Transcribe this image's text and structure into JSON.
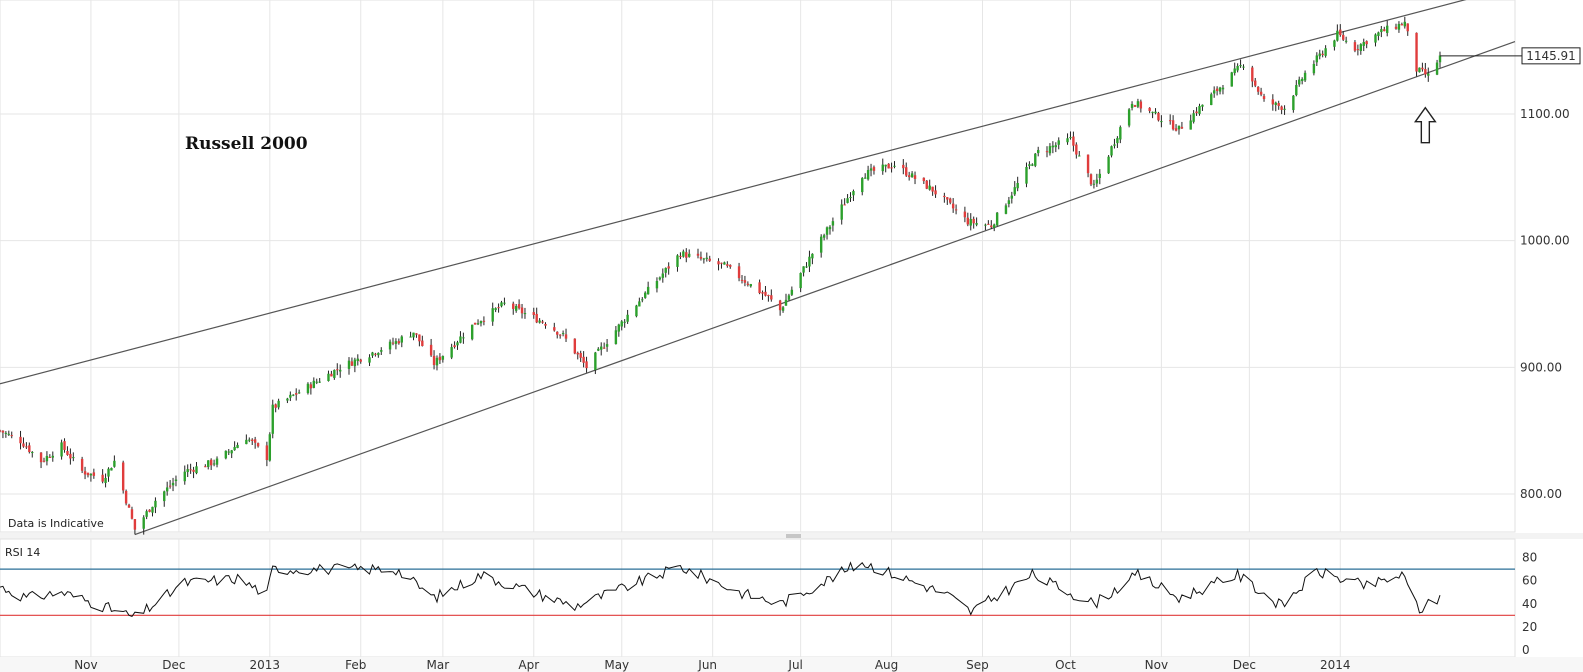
{
  "chart_data": [
    {
      "type": "candlestick",
      "title": "Russell 2000",
      "note": "Data is Indicative",
      "current_value": "1145.91",
      "ylim": [
        770,
        1190
      ],
      "y_ticks": [
        "800.00",
        "900.00",
        "1000.00",
        "1100.00"
      ],
      "x_labels": [
        "Nov",
        "Dec",
        "2013",
        "Feb",
        "Mar",
        "Apr",
        "May",
        "Jun",
        "Jul",
        "Aug",
        "Sep",
        "Oct",
        "Nov",
        "Dec",
        "2014"
      ],
      "colors": {
        "up": "#2ca02c",
        "down": "#e03c3c",
        "wick": "#222222",
        "trendline": "#555555"
      },
      "trend_channel": {
        "upper": {
          "start": [
            "2012-10-01",
            887
          ],
          "end": [
            "2014-02-04",
            1185
          ]
        },
        "lower": {
          "start": [
            "2012-11-16",
            768
          ],
          "end": [
            "2014-02-04",
            1136
          ]
        }
      },
      "close_anchors": [
        [
          "2012-10-01",
          850
        ],
        [
          "2012-10-08",
          842
        ],
        [
          "2012-10-15",
          826
        ],
        [
          "2012-10-22",
          838
        ],
        [
          "2012-10-29",
          818
        ],
        [
          "2012-11-05",
          812
        ],
        [
          "2012-11-09",
          826
        ],
        [
          "2012-11-16",
          772
        ],
        [
          "2012-11-23",
          795
        ],
        [
          "2012-12-03",
          818
        ],
        [
          "2012-12-14",
          826
        ],
        [
          "2012-12-24",
          845
        ],
        [
          "2012-12-31",
          829
        ],
        [
          "2013-01-02",
          868
        ],
        [
          "2013-01-25",
          900
        ],
        [
          "2013-02-13",
          920
        ],
        [
          "2013-02-19",
          928
        ],
        [
          "2013-02-26",
          903
        ],
        [
          "2013-03-12",
          935
        ],
        [
          "2013-03-22",
          950
        ],
        [
          "2013-04-05",
          935
        ],
        [
          "2013-04-11",
          925
        ],
        [
          "2013-04-19",
          900
        ],
        [
          "2013-05-06",
          950
        ],
        [
          "2013-05-21",
          990
        ],
        [
          "2013-06-05",
          980
        ],
        [
          "2013-06-20",
          955
        ],
        [
          "2013-06-24",
          945
        ],
        [
          "2013-07-05",
          990
        ],
        [
          "2013-07-22",
          1052
        ],
        [
          "2013-08-02",
          1060
        ],
        [
          "2013-08-15",
          1040
        ],
        [
          "2013-08-27",
          1015
        ],
        [
          "2013-09-04",
          1012
        ],
        [
          "2013-09-20",
          1070
        ],
        [
          "2013-10-01",
          1080
        ],
        [
          "2013-10-09",
          1042
        ],
        [
          "2013-10-22",
          1110
        ],
        [
          "2013-11-07",
          1088
        ],
        [
          "2013-11-14",
          1105
        ],
        [
          "2013-11-29",
          1140
        ],
        [
          "2013-12-06",
          1110
        ],
        [
          "2013-12-13",
          1105
        ],
        [
          "2013-12-20",
          1132
        ],
        [
          "2013-12-31",
          1163
        ],
        [
          "2014-01-06",
          1152
        ],
        [
          "2014-01-15",
          1165
        ],
        [
          "2014-01-23",
          1172
        ],
        [
          "2014-01-27",
          1135
        ],
        [
          "2014-01-31",
          1130
        ],
        [
          "2014-02-04",
          1145
        ]
      ]
    },
    {
      "type": "line",
      "title": "RSI 14",
      "ylim": [
        0,
        90
      ],
      "y_ticks": [
        "0",
        "20",
        "40",
        "60",
        "80"
      ],
      "reference_lines": [
        {
          "value": 70,
          "color": "#2a6f97"
        },
        {
          "value": 30,
          "color": "#e03c3c"
        }
      ],
      "anchors": [
        [
          "2012-10-01",
          55
        ],
        [
          "2012-10-10",
          45
        ],
        [
          "2012-10-22",
          50
        ],
        [
          "2012-11-05",
          38
        ],
        [
          "2012-11-16",
          28
        ],
        [
          "2012-12-03",
          58
        ],
        [
          "2012-12-21",
          62
        ],
        [
          "2012-12-31",
          48
        ],
        [
          "2013-01-02",
          70
        ],
        [
          "2013-02-13",
          70
        ],
        [
          "2013-02-26",
          45
        ],
        [
          "2013-03-14",
          65
        ],
        [
          "2013-04-15",
          38
        ],
        [
          "2013-05-21",
          72
        ],
        [
          "2013-06-10",
          50
        ],
        [
          "2013-06-24",
          40
        ],
        [
          "2013-07-22",
          76
        ],
        [
          "2013-08-20",
          48
        ],
        [
          "2013-08-28",
          33
        ],
        [
          "2013-09-18",
          65
        ],
        [
          "2013-10-09",
          40
        ],
        [
          "2013-10-24",
          65
        ],
        [
          "2013-11-07",
          45
        ],
        [
          "2013-11-27",
          65
        ],
        [
          "2013-12-12",
          38
        ],
        [
          "2013-12-24",
          68
        ],
        [
          "2014-01-10",
          55
        ],
        [
          "2014-01-22",
          65
        ],
        [
          "2014-01-28",
          35
        ],
        [
          "2014-02-04",
          45
        ]
      ]
    }
  ]
}
